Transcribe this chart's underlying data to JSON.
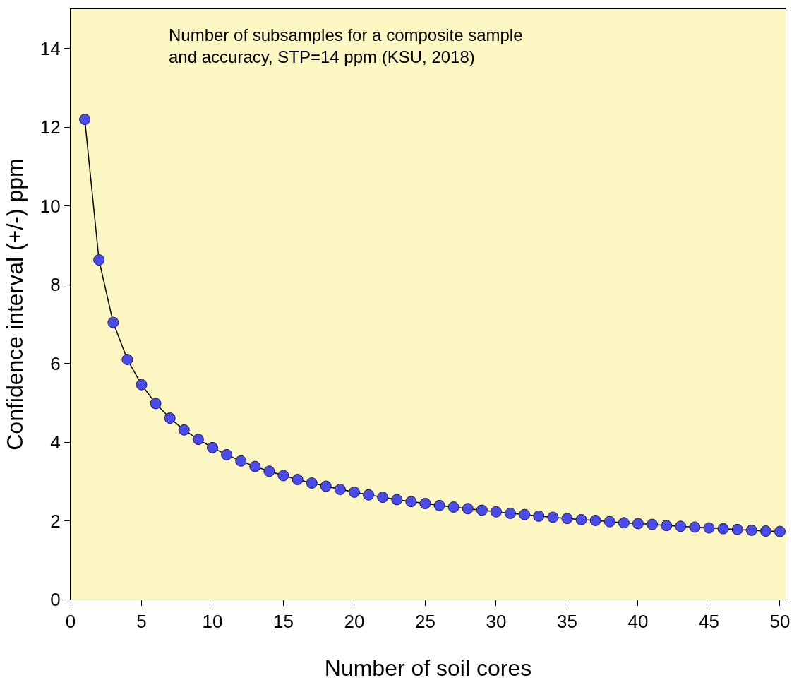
{
  "chart_data": {
    "type": "line",
    "xlabel": "Number of soil cores",
    "ylabel": "Confidence interval (+/-) ppm",
    "annotations": [
      "Number of subsamples for a composite sample\nand accuracy, STP=14 ppm (KSU, 2018)"
    ],
    "x": [
      1,
      2,
      3,
      4,
      5,
      6,
      7,
      8,
      9,
      10,
      11,
      12,
      13,
      14,
      15,
      16,
      17,
      18,
      19,
      20,
      21,
      22,
      23,
      24,
      25,
      26,
      27,
      28,
      29,
      30,
      31,
      32,
      33,
      34,
      35,
      36,
      37,
      38,
      39,
      40,
      41,
      42,
      43,
      44,
      45,
      46,
      47,
      48,
      49,
      50
    ],
    "series": [
      {
        "color": "#4b4be8",
        "values": [
          12.2,
          8.63,
          7.04,
          6.1,
          5.46,
          4.98,
          4.61,
          4.31,
          4.07,
          3.86,
          3.68,
          3.52,
          3.38,
          3.26,
          3.15,
          3.05,
          2.96,
          2.88,
          2.8,
          2.73,
          2.66,
          2.6,
          2.54,
          2.49,
          2.44,
          2.39,
          2.35,
          2.31,
          2.27,
          2.23,
          2.19,
          2.16,
          2.12,
          2.09,
          2.06,
          2.03,
          2.01,
          1.98,
          1.95,
          1.93,
          1.91,
          1.88,
          1.86,
          1.84,
          1.82,
          1.8,
          1.78,
          1.76,
          1.74,
          1.73
        ]
      }
    ],
    "xlim": [
      0,
      50.4
    ],
    "ylim": [
      0,
      15
    ],
    "xticks": [
      0,
      5,
      10,
      15,
      20,
      25,
      30,
      35,
      40,
      45,
      50
    ],
    "yticks": [
      0,
      2,
      4,
      6,
      8,
      10,
      12,
      14
    ],
    "marker": "circle",
    "line_style": "solid",
    "grid": false
  }
}
